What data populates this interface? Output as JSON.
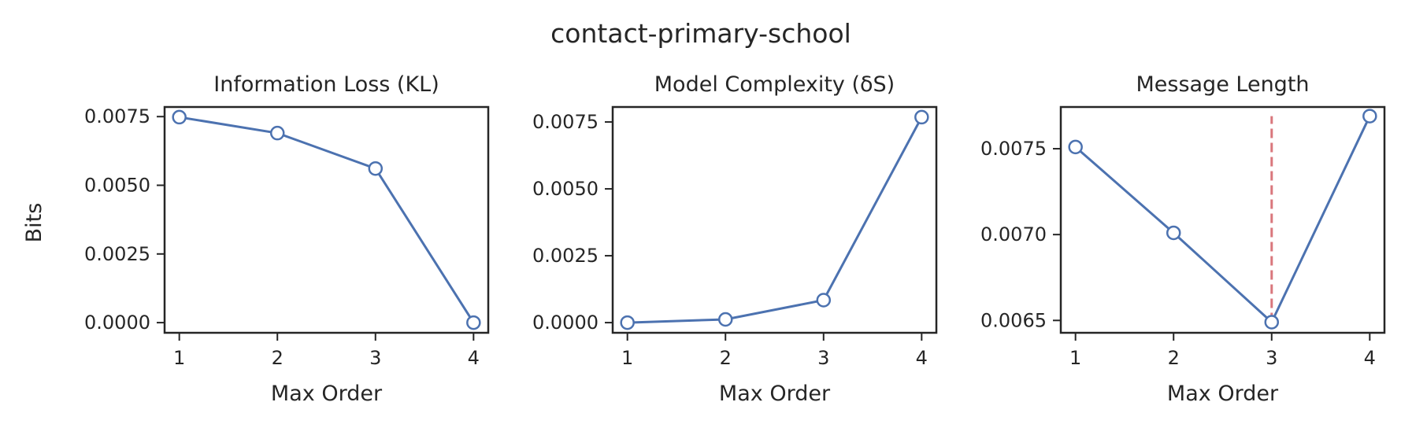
{
  "figure": {
    "suptitle": "contact-primary-school",
    "ylabel": "Bits"
  },
  "colors": {
    "line": "#4c72b0",
    "marker_face": "#ffffff",
    "vline": "#dd8452",
    "vline_alt": "#d9777c",
    "axes": "#262626"
  },
  "chart_data": [
    {
      "type": "line",
      "title": "Information Loss (KL)",
      "xlabel": "Max Order",
      "ylabel": "Bits",
      "x": [
        1,
        2,
        3,
        4
      ],
      "y": [
        0.00748,
        0.0069,
        0.00561,
        0.0
      ],
      "xticks": [
        "1",
        "2",
        "3",
        "4"
      ],
      "yticks": [
        0.0,
        0.0025,
        0.005,
        0.0075
      ],
      "ytick_labels": [
        "0.0000",
        "0.0025",
        "0.0050",
        "0.0075"
      ],
      "xlim": [
        0.85,
        4.15
      ],
      "ylim": [
        -0.00037,
        0.00785
      ],
      "grid": false,
      "vline": null
    },
    {
      "type": "line",
      "title": "Model Complexity (δS)",
      "xlabel": "Max Order",
      "ylabel": "",
      "x": [
        1,
        2,
        3,
        4
      ],
      "y": [
        0.0,
        0.00012,
        0.00084,
        0.00768
      ],
      "xticks": [
        "1",
        "2",
        "3",
        "4"
      ],
      "yticks": [
        0.0,
        0.0025,
        0.005,
        0.0075
      ],
      "ytick_labels": [
        "0.0000",
        "0.0025",
        "0.0050",
        "0.0075"
      ],
      "xlim": [
        0.85,
        4.15
      ],
      "ylim": [
        -0.00038,
        0.00806
      ],
      "grid": false,
      "vline": null
    },
    {
      "type": "line",
      "title": "Message Length",
      "xlabel": "Max Order",
      "ylabel": "",
      "x": [
        1,
        2,
        3,
        4
      ],
      "y": [
        0.00751,
        0.00701,
        0.00649,
        0.00769
      ],
      "xticks": [
        "1",
        "2",
        "3",
        "4"
      ],
      "yticks": [
        0.0065,
        0.007,
        0.0075
      ],
      "ytick_labels": [
        "0.0065",
        "0.0070",
        "0.0075"
      ],
      "xlim": [
        0.85,
        4.15
      ],
      "ylim": [
        0.006428,
        0.007743
      ],
      "grid": false,
      "vline": {
        "x": 3,
        "y_range": [
          0.00649,
          0.00769
        ]
      }
    }
  ]
}
